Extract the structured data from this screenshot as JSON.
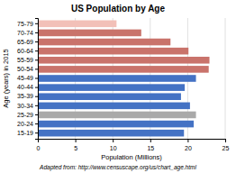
{
  "chart_data": {
    "type": "bar",
    "orientation": "horizontal",
    "title": "US Population by Age",
    "xlabel": "Population (Millions)",
    "ylabel": "Age (years) in 2015",
    "footnote": "Adapted from: http://www.censuscape.org/us/chart_age.html",
    "categories": [
      "15-19",
      "20-24",
      "25-29",
      "30-34",
      "35-39",
      "40-44",
      "45-49",
      "50-54",
      "55-59",
      "60-64",
      "65-69",
      "70-74",
      "75-79"
    ],
    "values": [
      19.5,
      20.8,
      21.1,
      20.3,
      19.1,
      19.6,
      21.1,
      22.8,
      22.9,
      20.1,
      17.7,
      13.8,
      10.5
    ],
    "colors": [
      "#4472C4",
      "#4472C4",
      "#A9A9A9",
      "#4472C4",
      "#4472C4",
      "#4472C4",
      "#4472C4",
      "#C9736B",
      "#C9736B",
      "#C9736B",
      "#C9736B",
      "#C9736B",
      "#F2C0B8"
    ],
    "xlim": [
      0,
      25
    ],
    "xticks": [
      0,
      5,
      10,
      15,
      20,
      25
    ],
    "grid": true
  }
}
